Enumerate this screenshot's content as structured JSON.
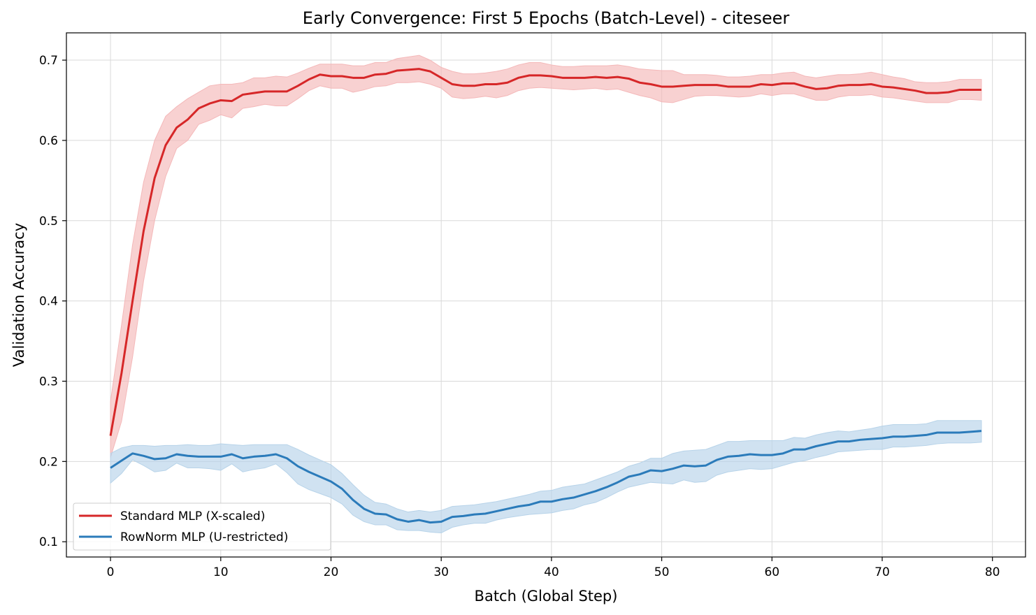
{
  "chart_data": {
    "type": "line",
    "title": "Early Convergence: First 5 Epochs (Batch-Level) - citeseer",
    "xlabel": "Batch (Global Step)",
    "ylabel": "Validation Accuracy",
    "xlim": [
      -4,
      83
    ],
    "ylim": [
      0.081,
      0.734
    ],
    "xticks": [
      "0",
      "10",
      "20",
      "30",
      "40",
      "50",
      "60",
      "70",
      "80"
    ],
    "yticks": [
      "0.1",
      "0.2",
      "0.3",
      "0.4",
      "0.5",
      "0.6",
      "0.7"
    ],
    "grid": true,
    "legend_position": "bottom-left",
    "series": [
      {
        "name": "Standard MLP (X-scaled)",
        "color": "#d62728",
        "band_color": "#f4b8b9",
        "x": [
          0,
          1,
          2,
          3,
          4,
          5,
          6,
          7,
          8,
          9,
          10,
          11,
          12,
          13,
          14,
          15,
          16,
          17,
          18,
          19,
          20,
          21,
          22,
          23,
          24,
          25,
          26,
          27,
          28,
          29,
          30,
          31,
          32,
          33,
          34,
          35,
          36,
          37,
          38,
          39,
          40,
          41,
          42,
          43,
          44,
          45,
          46,
          47,
          48,
          49,
          50,
          51,
          52,
          53,
          54,
          55,
          56,
          57,
          58,
          59,
          60,
          61,
          62,
          63,
          64,
          65,
          66,
          67,
          68,
          69,
          70,
          71,
          72,
          73,
          74,
          75,
          76,
          77,
          78,
          79
        ],
        "mean": [
          0.232,
          0.31,
          0.4,
          0.487,
          0.553,
          0.594,
          0.616,
          0.626,
          0.64,
          0.646,
          0.65,
          0.649,
          0.657,
          0.659,
          0.661,
          0.661,
          0.661,
          0.668,
          0.676,
          0.682,
          0.68,
          0.68,
          0.678,
          0.678,
          0.682,
          0.683,
          0.687,
          0.688,
          0.689,
          0.686,
          0.678,
          0.67,
          0.668,
          0.668,
          0.67,
          0.67,
          0.672,
          0.678,
          0.681,
          0.681,
          0.68,
          0.678,
          0.678,
          0.678,
          0.679,
          0.678,
          0.679,
          0.677,
          0.672,
          0.67,
          0.667,
          0.667,
          0.668,
          0.669,
          0.669,
          0.669,
          0.667,
          0.667,
          0.667,
          0.67,
          0.669,
          0.671,
          0.671,
          0.667,
          0.664,
          0.665,
          0.668,
          0.669,
          0.669,
          0.67,
          0.667,
          0.666,
          0.664,
          0.662,
          0.659,
          0.659,
          0.66,
          0.663,
          0.663,
          0.663
        ],
        "lower": [
          0.205,
          0.25,
          0.33,
          0.425,
          0.5,
          0.555,
          0.59,
          0.6,
          0.62,
          0.625,
          0.632,
          0.628,
          0.64,
          0.642,
          0.645,
          0.643,
          0.643,
          0.652,
          0.662,
          0.668,
          0.665,
          0.665,
          0.66,
          0.663,
          0.667,
          0.668,
          0.672,
          0.672,
          0.673,
          0.67,
          0.665,
          0.654,
          0.652,
          0.653,
          0.655,
          0.653,
          0.656,
          0.662,
          0.665,
          0.666,
          0.665,
          0.664,
          0.663,
          0.664,
          0.665,
          0.663,
          0.664,
          0.66,
          0.656,
          0.653,
          0.648,
          0.647,
          0.651,
          0.655,
          0.656,
          0.656,
          0.655,
          0.654,
          0.655,
          0.658,
          0.656,
          0.658,
          0.658,
          0.654,
          0.65,
          0.65,
          0.654,
          0.656,
          0.656,
          0.657,
          0.654,
          0.653,
          0.651,
          0.649,
          0.647,
          0.647,
          0.647,
          0.651,
          0.651,
          0.65
        ],
        "upper": [
          0.275,
          0.37,
          0.47,
          0.548,
          0.6,
          0.63,
          0.642,
          0.652,
          0.66,
          0.668,
          0.67,
          0.67,
          0.672,
          0.678,
          0.678,
          0.68,
          0.679,
          0.684,
          0.69,
          0.695,
          0.695,
          0.695,
          0.693,
          0.693,
          0.697,
          0.697,
          0.702,
          0.704,
          0.706,
          0.7,
          0.691,
          0.686,
          0.683,
          0.683,
          0.684,
          0.686,
          0.689,
          0.694,
          0.697,
          0.697,
          0.694,
          0.692,
          0.692,
          0.693,
          0.693,
          0.693,
          0.694,
          0.692,
          0.689,
          0.688,
          0.687,
          0.687,
          0.682,
          0.682,
          0.682,
          0.681,
          0.679,
          0.679,
          0.68,
          0.682,
          0.682,
          0.684,
          0.685,
          0.68,
          0.678,
          0.68,
          0.682,
          0.682,
          0.683,
          0.685,
          0.682,
          0.679,
          0.677,
          0.673,
          0.672,
          0.672,
          0.673,
          0.676,
          0.676,
          0.676
        ]
      },
      {
        "name": "RowNorm MLP (U-restricted)",
        "color": "#2b7bba",
        "band_color": "#b7d3e9",
        "x": [
          0,
          1,
          2,
          3,
          4,
          5,
          6,
          7,
          8,
          9,
          10,
          11,
          12,
          13,
          14,
          15,
          16,
          17,
          18,
          19,
          20,
          21,
          22,
          23,
          24,
          25,
          26,
          27,
          28,
          29,
          30,
          31,
          32,
          33,
          34,
          35,
          36,
          37,
          38,
          39,
          40,
          41,
          42,
          43,
          44,
          45,
          46,
          47,
          48,
          49,
          50,
          51,
          52,
          53,
          54,
          55,
          56,
          57,
          58,
          59,
          60,
          61,
          62,
          63,
          64,
          65,
          66,
          67,
          68,
          69,
          70,
          71,
          72,
          73,
          74,
          75,
          76,
          77,
          78,
          79
        ],
        "mean": [
          0.192,
          0.201,
          0.21,
          0.207,
          0.203,
          0.204,
          0.209,
          0.207,
          0.206,
          0.206,
          0.206,
          0.209,
          0.204,
          0.206,
          0.207,
          0.209,
          0.204,
          0.194,
          0.187,
          0.181,
          0.175,
          0.166,
          0.152,
          0.141,
          0.135,
          0.134,
          0.128,
          0.125,
          0.127,
          0.124,
          0.125,
          0.131,
          0.132,
          0.134,
          0.135,
          0.138,
          0.141,
          0.144,
          0.146,
          0.15,
          0.15,
          0.153,
          0.155,
          0.159,
          0.163,
          0.168,
          0.174,
          0.181,
          0.184,
          0.189,
          0.188,
          0.191,
          0.195,
          0.194,
          0.195,
          0.202,
          0.206,
          0.207,
          0.209,
          0.208,
          0.208,
          0.21,
          0.215,
          0.215,
          0.219,
          0.222,
          0.225,
          0.225,
          0.227,
          0.228,
          0.229,
          0.231,
          0.231,
          0.232,
          0.233,
          0.236,
          0.236,
          0.236,
          0.237,
          0.238
        ],
        "lower": [
          0.173,
          0.185,
          0.202,
          0.195,
          0.187,
          0.189,
          0.198,
          0.192,
          0.192,
          0.191,
          0.189,
          0.197,
          0.187,
          0.19,
          0.192,
          0.197,
          0.186,
          0.172,
          0.165,
          0.16,
          0.155,
          0.147,
          0.133,
          0.125,
          0.121,
          0.121,
          0.115,
          0.114,
          0.114,
          0.112,
          0.111,
          0.118,
          0.121,
          0.123,
          0.123,
          0.127,
          0.13,
          0.132,
          0.134,
          0.135,
          0.136,
          0.139,
          0.141,
          0.146,
          0.149,
          0.155,
          0.162,
          0.168,
          0.171,
          0.174,
          0.173,
          0.172,
          0.177,
          0.174,
          0.175,
          0.183,
          0.187,
          0.189,
          0.191,
          0.19,
          0.191,
          0.195,
          0.199,
          0.201,
          0.205,
          0.208,
          0.212,
          0.213,
          0.214,
          0.215,
          0.215,
          0.218,
          0.218,
          0.219,
          0.22,
          0.222,
          0.223,
          0.223,
          0.223,
          0.224
        ],
        "upper": [
          0.21,
          0.217,
          0.22,
          0.22,
          0.219,
          0.22,
          0.22,
          0.221,
          0.22,
          0.22,
          0.222,
          0.221,
          0.22,
          0.221,
          0.221,
          0.221,
          0.221,
          0.215,
          0.208,
          0.202,
          0.196,
          0.185,
          0.171,
          0.158,
          0.149,
          0.147,
          0.141,
          0.137,
          0.139,
          0.137,
          0.139,
          0.144,
          0.145,
          0.146,
          0.148,
          0.15,
          0.153,
          0.156,
          0.159,
          0.163,
          0.164,
          0.168,
          0.17,
          0.172,
          0.177,
          0.182,
          0.187,
          0.194,
          0.198,
          0.204,
          0.204,
          0.21,
          0.213,
          0.214,
          0.215,
          0.22,
          0.225,
          0.225,
          0.226,
          0.226,
          0.226,
          0.226,
          0.23,
          0.229,
          0.233,
          0.236,
          0.238,
          0.237,
          0.239,
          0.241,
          0.244,
          0.246,
          0.246,
          0.246,
          0.247,
          0.251,
          0.251,
          0.251,
          0.251,
          0.251
        ]
      }
    ]
  }
}
